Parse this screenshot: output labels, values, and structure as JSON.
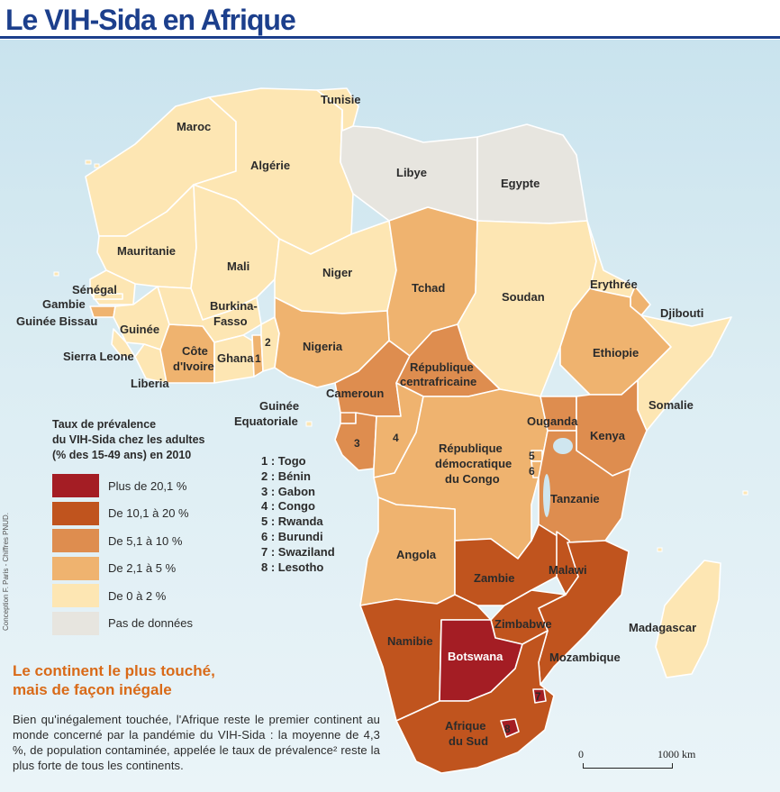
{
  "title": "Le VIH-Sida  en Afrique",
  "colors": {
    "over_20": "#a41d24",
    "10_20": "#c0541e",
    "5_10": "#de8d4f",
    "2_5": "#efb36f",
    "0_2": "#fde6b3",
    "no_data": "#e7e5df",
    "sea": "#cfe6ef",
    "title": "#1c3f8c",
    "heading": "#d96a18"
  },
  "countries": [
    {
      "name": "Maroc",
      "category": "0_2"
    },
    {
      "name": "Algérie",
      "category": "0_2"
    },
    {
      "name": "Tunisie",
      "category": "0_2"
    },
    {
      "name": "Libye",
      "category": "no_data"
    },
    {
      "name": "Egypte",
      "category": "no_data"
    },
    {
      "name": "Mauritanie",
      "category": "0_2"
    },
    {
      "name": "Mali",
      "category": "0_2"
    },
    {
      "name": "Niger",
      "category": "0_2"
    },
    {
      "name": "Tchad",
      "category": "2_5"
    },
    {
      "name": "Soudan",
      "category": "0_2"
    },
    {
      "name": "Erythrée",
      "category": "0_2"
    },
    {
      "name": "Djibouti",
      "category": "2_5"
    },
    {
      "name": "Ethiopie",
      "category": "2_5"
    },
    {
      "name": "Somalie",
      "category": "0_2"
    },
    {
      "name": "Sénégal",
      "category": "0_2"
    },
    {
      "name": "Gambie",
      "category": "0_2"
    },
    {
      "name": "Guinée Bissau",
      "category": "2_5"
    },
    {
      "name": "Guinée",
      "category": "0_2"
    },
    {
      "name": "Sierra Leone",
      "category": "0_2"
    },
    {
      "name": "Liberia",
      "category": "0_2"
    },
    {
      "name": "Côte d'Ivoire",
      "category": "2_5"
    },
    {
      "name": "Burkina-Faso",
      "category": "0_2"
    },
    {
      "name": "Ghana",
      "category": "0_2"
    },
    {
      "name": "Togo",
      "category": "2_5"
    },
    {
      "name": "Bénin",
      "category": "0_2"
    },
    {
      "name": "Nigeria",
      "category": "2_5"
    },
    {
      "name": "Cameroun",
      "category": "5_10"
    },
    {
      "name": "République centrafricaine",
      "category": "5_10"
    },
    {
      "name": "Guinée Equatoriale",
      "category": "5_10"
    },
    {
      "name": "Gabon",
      "category": "5_10"
    },
    {
      "name": "Congo",
      "category": "2_5"
    },
    {
      "name": "République démocratique du Congo",
      "category": "2_5"
    },
    {
      "name": "Ouganda",
      "category": "5_10"
    },
    {
      "name": "Kenya",
      "category": "5_10"
    },
    {
      "name": "Rwanda",
      "category": "2_5"
    },
    {
      "name": "Burundi",
      "category": "2_5"
    },
    {
      "name": "Tanzanie",
      "category": "5_10"
    },
    {
      "name": "Angola",
      "category": "2_5"
    },
    {
      "name": "Zambie",
      "category": "10_20"
    },
    {
      "name": "Malawi",
      "category": "10_20"
    },
    {
      "name": "Mozambique",
      "category": "10_20"
    },
    {
      "name": "Zimbabwe",
      "category": "10_20"
    },
    {
      "name": "Namibie",
      "category": "10_20"
    },
    {
      "name": "Botswana",
      "category": "over_20"
    },
    {
      "name": "Afrique du Sud",
      "category": "10_20"
    },
    {
      "name": "Swaziland",
      "category": "over_20"
    },
    {
      "name": "Lesotho",
      "category": "over_20"
    },
    {
      "name": "Madagascar",
      "category": "0_2"
    }
  ],
  "labels": {
    "maroc": "Maroc",
    "algerie": "Algérie",
    "tunisie": "Tunisie",
    "libye": "Libye",
    "egypte": "Egypte",
    "mauritanie": "Mauritanie",
    "mali": "Mali",
    "niger": "Niger",
    "tchad": "Tchad",
    "soudan": "Soudan",
    "erythree": "Erythrée",
    "djibouti": "Djibouti",
    "ethiopie": "Ethiopie",
    "somalie": "Somalie",
    "senegal": "Sénégal",
    "gambie": "Gambie",
    "guinee_bissau": "Guinée Bissau",
    "guinee": "Guinée",
    "sierra_leone": "Sierra Leone",
    "liberia": "Liberia",
    "cote_line1": "Côte",
    "cote_line2": "d'Ivoire",
    "burkina_line1": "Burkina-",
    "burkina_line2": "Fasso",
    "ghana": "Ghana",
    "nigeria": "Nigeria",
    "cameroun": "Cameroun",
    "rca_line1": "République",
    "rca_line2": "centrafricaine",
    "guinee_eq_line1": "Guinée",
    "guinee_eq_line2": "Equatoriale",
    "rdc_line1": "République",
    "rdc_line2": "démocratique",
    "rdc_line3": "du Congo",
    "ouganda": "Ouganda",
    "kenya": "Kenya",
    "tanzanie": "Tanzanie",
    "angola": "Angola",
    "zambie": "Zambie",
    "malawi": "Malawi",
    "zimbabwe": "Zimbabwe",
    "mozambique": "Mozambique",
    "namibie": "Namibie",
    "botswana": "Botswana",
    "afrique_sud_line1": "Afrique",
    "afrique_sud_line2": "du Sud",
    "madagascar": "Madagascar",
    "n1": "1",
    "n2": "2",
    "n3": "3",
    "n4": "4",
    "n5": "5",
    "n6": "6",
    "n7": "7",
    "n8": "8"
  },
  "legend": {
    "title_line1": "Taux de prévalence",
    "title_line2": "du VIH-Sida chez les adultes",
    "title_line3": "(% des 15-49 ans) en 2010",
    "items": [
      {
        "label": "Plus de 20,1 %",
        "color": "#a41d24"
      },
      {
        "label": "De 10,1 à 20 %",
        "color": "#c0541e"
      },
      {
        "label": "De 5,1 à 10 %",
        "color": "#de8d4f"
      },
      {
        "label": "De 2,1 à 5 %",
        "color": "#efb36f"
      },
      {
        "label": "De 0 à 2 %",
        "color": "#fde6b3"
      },
      {
        "label": "Pas de données",
        "color": "#e7e5df"
      }
    ]
  },
  "key_list": [
    "1 : Togo",
    "2 : Bénin",
    "3 : Gabon",
    "4 : Congo",
    "5 : Rwanda",
    "6 : Burundi",
    "7 : Swaziland",
    "8 : Lesotho"
  ],
  "credit": "Conception F. Paris - Chiffres PNUD.",
  "textbox": {
    "heading_line1": "Le continent le plus touché,",
    "heading_line2": "mais de façon inégale",
    "body": "Bien qu'inégalement touchée, l'Afrique reste le premier continent au monde concerné par la pandémie du VIH-Sida : la moyenne de 4,3 %, de population contaminée, appelée le taux de prévalence² reste la plus forte de tous les continents."
  },
  "scale": {
    "start": "0",
    "end": "1000 km"
  }
}
